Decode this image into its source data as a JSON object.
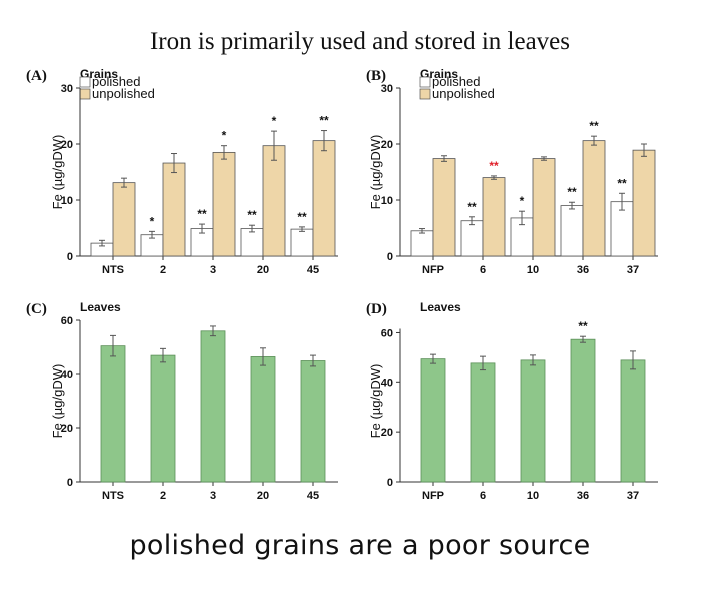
{
  "title": "Iron is primarily used and stored in leaves",
  "footer": "polished grains are a poor source",
  "colors": {
    "polished": "#ffffff",
    "unpolished": "#eed6a8",
    "leaves": "#8ec68a",
    "leaves_stroke": "#5b8f58",
    "sig_default": "#111111",
    "sig_red": "#e0202a"
  },
  "chart_data": [
    {
      "panel": "(A)",
      "type": "bar",
      "legend_title": "Grains",
      "categories": [
        "NTS",
        "2",
        "3",
        "20",
        "45"
      ],
      "ylabel": "Fe (µg/gDW)",
      "ylim": [
        0,
        30
      ],
      "yticks": [
        0,
        10,
        20,
        30
      ],
      "series": [
        {
          "name": "polished",
          "values": [
            2.3,
            3.8,
            4.9,
            4.9,
            4.8
          ],
          "errors": [
            0.5,
            0.6,
            0.8,
            0.6,
            0.4
          ],
          "sig": [
            "",
            "*",
            "**",
            "**",
            "**"
          ]
        },
        {
          "name": "unpolished",
          "values": [
            13.1,
            16.6,
            18.5,
            19.7,
            20.6
          ],
          "errors": [
            0.8,
            1.7,
            1.2,
            2.6,
            1.8
          ],
          "sig": [
            "",
            "",
            "*",
            "*",
            "**"
          ]
        }
      ]
    },
    {
      "panel": "(B)",
      "type": "bar",
      "legend_title": "Grains",
      "categories": [
        "NFP",
        "6",
        "10",
        "36",
        "37"
      ],
      "ylabel": "Fe (µg/gDW)",
      "ylim": [
        0,
        30
      ],
      "yticks": [
        0,
        10,
        20,
        30
      ],
      "series": [
        {
          "name": "polished",
          "values": [
            4.5,
            6.3,
            6.8,
            9.0,
            9.7
          ],
          "errors": [
            0.4,
            0.7,
            1.2,
            0.6,
            1.5
          ],
          "sig": [
            "",
            "**",
            "*",
            "**",
            "**"
          ],
          "sig_red": [
            false,
            false,
            false,
            false,
            false
          ]
        },
        {
          "name": "unpolished",
          "values": [
            17.4,
            14.0,
            17.4,
            20.6,
            18.9
          ],
          "errors": [
            0.5,
            0.3,
            0.3,
            0.8,
            1.1
          ],
          "sig": [
            "",
            "**",
            "",
            "**",
            ""
          ],
          "sig_red": [
            false,
            true,
            false,
            false,
            false
          ]
        }
      ]
    },
    {
      "panel": "(C)",
      "type": "bar",
      "legend_title": "Leaves",
      "categories": [
        "NTS",
        "2",
        "3",
        "20",
        "45"
      ],
      "ylabel": "Fe (µg/gDW)",
      "ylim": [
        0,
        60
      ],
      "yticks": [
        0,
        20,
        40,
        60
      ],
      "series": [
        {
          "name": "Leaves",
          "values": [
            50.5,
            47.0,
            56.0,
            46.5,
            45.0
          ],
          "errors": [
            3.8,
            2.5,
            1.8,
            3.2,
            2.0
          ],
          "sig": [
            "",
            "",
            "",
            "",
            ""
          ]
        }
      ]
    },
    {
      "panel": "(D)",
      "type": "bar",
      "legend_title": "Leaves",
      "categories": [
        "NFP",
        "6",
        "10",
        "36",
        "37"
      ],
      "ylabel": "Fe (µg/gDW)",
      "ylim": [
        0,
        65
      ],
      "yticks": [
        0,
        20,
        40,
        60
      ],
      "series": [
        {
          "name": "Leaves",
          "values": [
            49.5,
            47.8,
            49.0,
            57.3,
            49.0
          ],
          "errors": [
            1.8,
            2.7,
            2.0,
            1.2,
            3.6
          ],
          "sig": [
            "",
            "",
            "",
            "**",
            ""
          ]
        }
      ]
    }
  ]
}
